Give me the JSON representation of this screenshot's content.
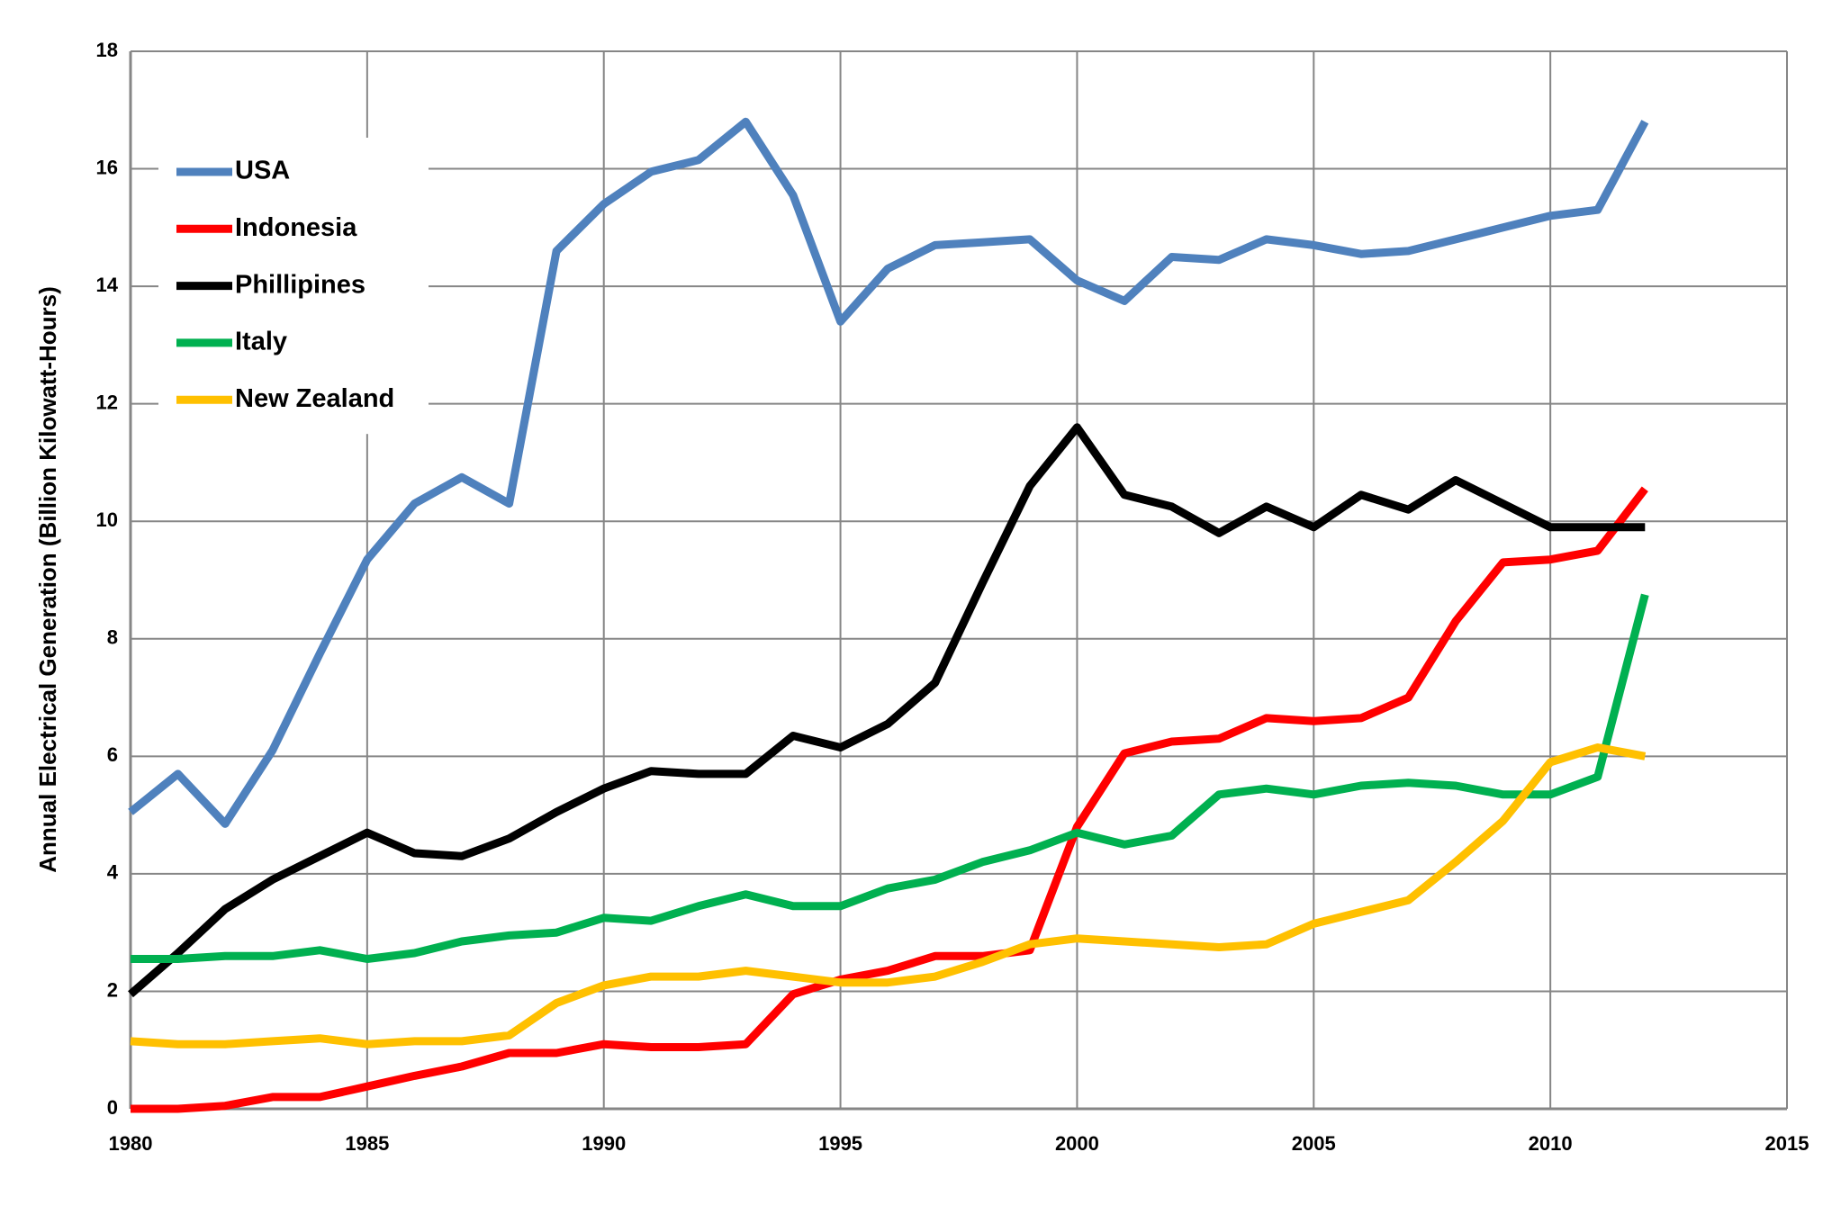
{
  "chart_data": {
    "type": "line",
    "ylabel": "Annual Electrical Generation (Billion Kilowatt-Hours)",
    "x": [
      1980,
      1981,
      1982,
      1983,
      1984,
      1985,
      1986,
      1987,
      1988,
      1989,
      1990,
      1991,
      1992,
      1993,
      1994,
      1995,
      1996,
      1997,
      1998,
      1999,
      2000,
      2001,
      2002,
      2003,
      2004,
      2005,
      2006,
      2007,
      2008,
      2009,
      2010,
      2011,
      2012
    ],
    "series": [
      {
        "name": "USA",
        "color": "#4f81bd",
        "values": [
          5.05,
          5.7,
          4.85,
          6.1,
          7.75,
          9.35,
          10.3,
          10.75,
          10.3,
          14.6,
          15.4,
          15.95,
          16.15,
          16.8,
          15.55,
          13.4,
          14.3,
          14.7,
          14.75,
          14.8,
          14.1,
          13.75,
          14.5,
          14.45,
          14.8,
          14.7,
          14.55,
          14.6,
          14.8,
          15.0,
          15.2,
          15.3,
          16.8
        ]
      },
      {
        "name": "Indonesia",
        "color": "#ff0000",
        "values": [
          0,
          0,
          0.05,
          0.2,
          0.2,
          0.38,
          0.56,
          0.72,
          0.95,
          0.95,
          1.1,
          1.05,
          1.05,
          1.1,
          1.95,
          2.2,
          2.35,
          2.6,
          2.6,
          2.7,
          4.8,
          6.05,
          6.25,
          6.3,
          6.65,
          6.6,
          6.65,
          7.0,
          8.3,
          9.3,
          9.35,
          9.5,
          10.55
        ]
      },
      {
        "name": "Phillipines",
        "color": "#000000",
        "values": [
          1.95,
          2.65,
          3.4,
          3.9,
          4.3,
          4.7,
          4.35,
          4.3,
          4.6,
          5.05,
          5.45,
          5.75,
          5.7,
          5.7,
          6.35,
          6.15,
          6.55,
          7.25,
          8.95,
          10.6,
          11.6,
          10.45,
          10.25,
          9.8,
          10.25,
          9.9,
          10.45,
          10.2,
          10.7,
          10.3,
          9.9,
          9.9,
          9.9
        ]
      },
      {
        "name": "Italy",
        "color": "#00b050",
        "values": [
          2.55,
          2.55,
          2.6,
          2.6,
          2.7,
          2.55,
          2.65,
          2.85,
          2.95,
          3.0,
          3.25,
          3.2,
          3.45,
          3.65,
          3.45,
          3.45,
          3.75,
          3.9,
          4.2,
          4.4,
          4.7,
          4.5,
          4.65,
          5.35,
          5.45,
          5.35,
          5.5,
          5.55,
          5.5,
          5.35,
          5.35,
          5.65,
          8.75
        ]
      },
      {
        "name": "New Zealand",
        "color": "#ffc000",
        "values": [
          1.15,
          1.1,
          1.1,
          1.15,
          1.2,
          1.1,
          1.15,
          1.15,
          1.25,
          1.8,
          2.1,
          2.25,
          2.25,
          2.35,
          2.25,
          2.15,
          2.15,
          2.25,
          2.5,
          2.8,
          2.9,
          2.85,
          2.8,
          2.75,
          2.8,
          3.15,
          3.35,
          3.55,
          4.2,
          4.9,
          5.9,
          6.15,
          6.0
        ]
      }
    ],
    "xlim": [
      1980,
      2015
    ],
    "xticks": [
      1980,
      1985,
      1990,
      1995,
      2000,
      2005,
      2010,
      2015
    ],
    "ylim": [
      0,
      18
    ],
    "yticks": [
      0,
      2,
      4,
      6,
      8,
      10,
      12,
      14,
      16,
      18
    ],
    "grid": true,
    "legend": "upper-left"
  }
}
